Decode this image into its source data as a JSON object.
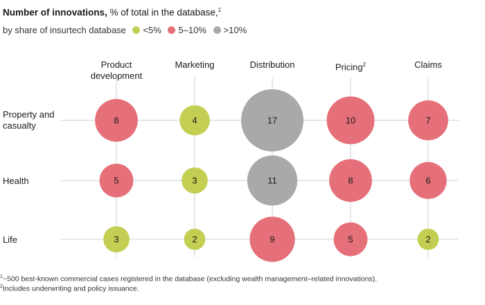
{
  "title": {
    "bold": "Number of innovations,",
    "rest": " % of total in the database,",
    "mark": "1"
  },
  "legend": {
    "prefix": "by share of insurtech database",
    "items": [
      {
        "label": "<5%",
        "color": "#c3cf52"
      },
      {
        "label": "5–10%",
        "color": "#e57079"
      },
      {
        "label": ">10%",
        "color": "#a8aaa9"
      }
    ]
  },
  "chart_data": {
    "type": "bubble-matrix",
    "columns": [
      "Product development",
      "Marketing",
      "Distribution",
      "Pricing",
      "Claims"
    ],
    "column_marks": [
      "",
      "",
      "",
      "2",
      ""
    ],
    "rows": [
      "Property and casualty",
      "Health",
      "Life"
    ],
    "values": [
      [
        8,
        4,
        17,
        10,
        7
      ],
      [
        5,
        3,
        11,
        8,
        6
      ],
      [
        3,
        2,
        9,
        5,
        2
      ]
    ],
    "categories": [
      [
        "5–10%",
        "<5%",
        ">10%",
        "5–10%",
        "5–10%"
      ],
      [
        "5–10%",
        "<5%",
        ">10%",
        "5–10%",
        "5–10%"
      ],
      [
        "<5%",
        "<5%",
        "5–10%",
        "5–10%",
        "<5%"
      ]
    ],
    "category_colors": {
      "<5%": "#c3cf52",
      "5–10%": "#e57079",
      ">10%": "#a8aaa9"
    },
    "grid_color": "#cfcfcf"
  },
  "footnotes": [
    {
      "mark": "1",
      "text": "~500 best-known commercial cases registered in the database (excluding wealth management–related innovations)."
    },
    {
      "mark": "2",
      "text": "Includes underwriting and policy issuance."
    }
  ]
}
